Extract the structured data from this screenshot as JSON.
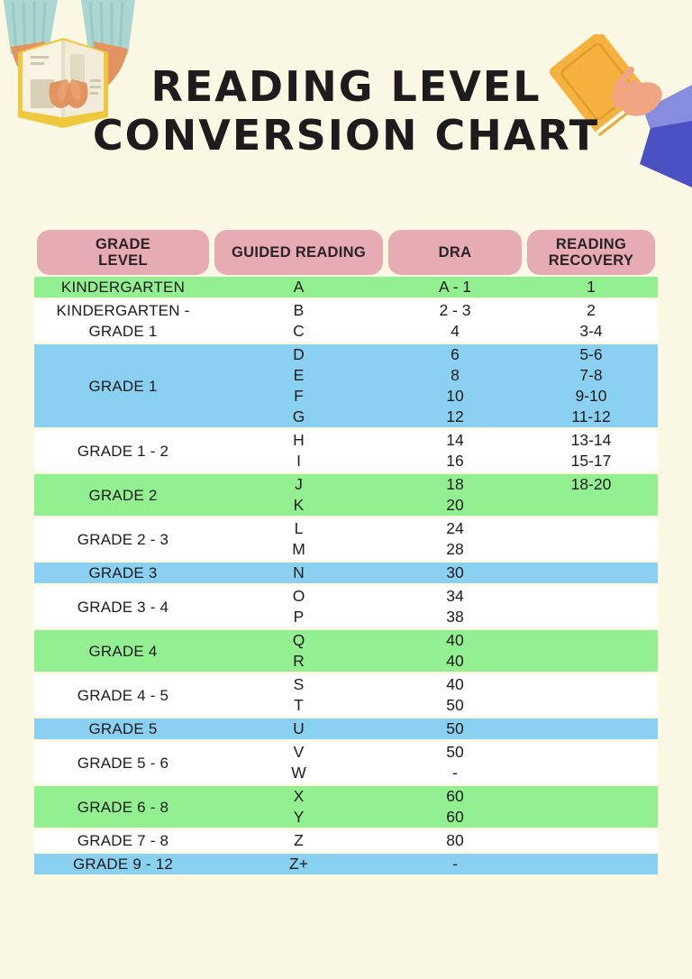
{
  "title": {
    "line1": "READING LEVEL",
    "line2": "CONVERSION CHART"
  },
  "colors": {
    "background": "#FBF8E3",
    "header_pill": "#E6ABB3",
    "header_text": "#2B2326",
    "text": "#1D1B1C",
    "row_green": "#93F090",
    "row_blue": "#8AD1F1",
    "row_white": "#FFFFFF"
  },
  "illustrations": {
    "left": "hands-holding-open-book",
    "right": "hand-holding-orange-book"
  },
  "table": {
    "headers": [
      "GRADE LEVEL",
      "GUIDED READING",
      "DRA",
      "READING RECOVERY"
    ],
    "rows": [
      {
        "grade": "KINDERGARTEN",
        "color": "green",
        "guided_reading": [
          "A"
        ],
        "dra": [
          "A - 1"
        ],
        "reading_recovery": [
          "1"
        ]
      },
      {
        "grade": "KINDERGARTEN -\nGRADE 1",
        "color": "white",
        "guided_reading": [
          "B",
          "C"
        ],
        "dra": [
          "2 - 3",
          "4"
        ],
        "reading_recovery": [
          "2",
          "3-4"
        ]
      },
      {
        "grade": "GRADE 1",
        "color": "blue",
        "guided_reading": [
          "D",
          "E",
          "F",
          "G"
        ],
        "dra": [
          "6",
          "8",
          "10",
          "12"
        ],
        "reading_recovery": [
          "5-6",
          "7-8",
          "9-10",
          "11-12"
        ]
      },
      {
        "grade": "GRADE 1 - 2",
        "color": "white",
        "guided_reading": [
          "H",
          "I"
        ],
        "dra": [
          "14",
          "16"
        ],
        "reading_recovery": [
          "13-14",
          "15-17"
        ]
      },
      {
        "grade": "GRADE 2",
        "color": "green",
        "guided_reading": [
          "J",
          "K"
        ],
        "dra": [
          "18",
          "20"
        ],
        "reading_recovery": [
          "18-20"
        ]
      },
      {
        "grade": "GRADE 2 - 3",
        "color": "white",
        "guided_reading": [
          "L",
          "M"
        ],
        "dra": [
          "24",
          "28"
        ],
        "reading_recovery": []
      },
      {
        "grade": "GRADE 3",
        "color": "blue",
        "guided_reading": [
          "N"
        ],
        "dra": [
          "30"
        ],
        "reading_recovery": []
      },
      {
        "grade": "GRADE 3 - 4",
        "color": "white",
        "guided_reading": [
          "O",
          "P"
        ],
        "dra": [
          "34",
          "38"
        ],
        "reading_recovery": []
      },
      {
        "grade": "GRADE 4",
        "color": "green",
        "guided_reading": [
          "Q",
          "R"
        ],
        "dra": [
          "40",
          "40"
        ],
        "reading_recovery": []
      },
      {
        "grade": "GRADE 4 - 5",
        "color": "white",
        "guided_reading": [
          "S",
          "T"
        ],
        "dra": [
          "40",
          "50"
        ],
        "reading_recovery": []
      },
      {
        "grade": "GRADE 5",
        "color": "blue",
        "guided_reading": [
          "U"
        ],
        "dra": [
          "50"
        ],
        "reading_recovery": []
      },
      {
        "grade": "GRADE 5 - 6",
        "color": "white",
        "guided_reading": [
          "V",
          "W"
        ],
        "dra": [
          "50",
          "-"
        ],
        "reading_recovery": []
      },
      {
        "grade": "GRADE 6 - 8",
        "color": "green",
        "guided_reading": [
          "X",
          "Y"
        ],
        "dra": [
          "60",
          "60"
        ],
        "reading_recovery": []
      },
      {
        "grade": "GRADE 7 - 8",
        "color": "white",
        "guided_reading": [
          "Z"
        ],
        "dra": [
          "80"
        ],
        "reading_recovery": []
      },
      {
        "grade": "GRADE 9 - 12",
        "color": "blue",
        "guided_reading": [
          "Z+"
        ],
        "dra": [
          "-"
        ],
        "reading_recovery": []
      }
    ]
  }
}
